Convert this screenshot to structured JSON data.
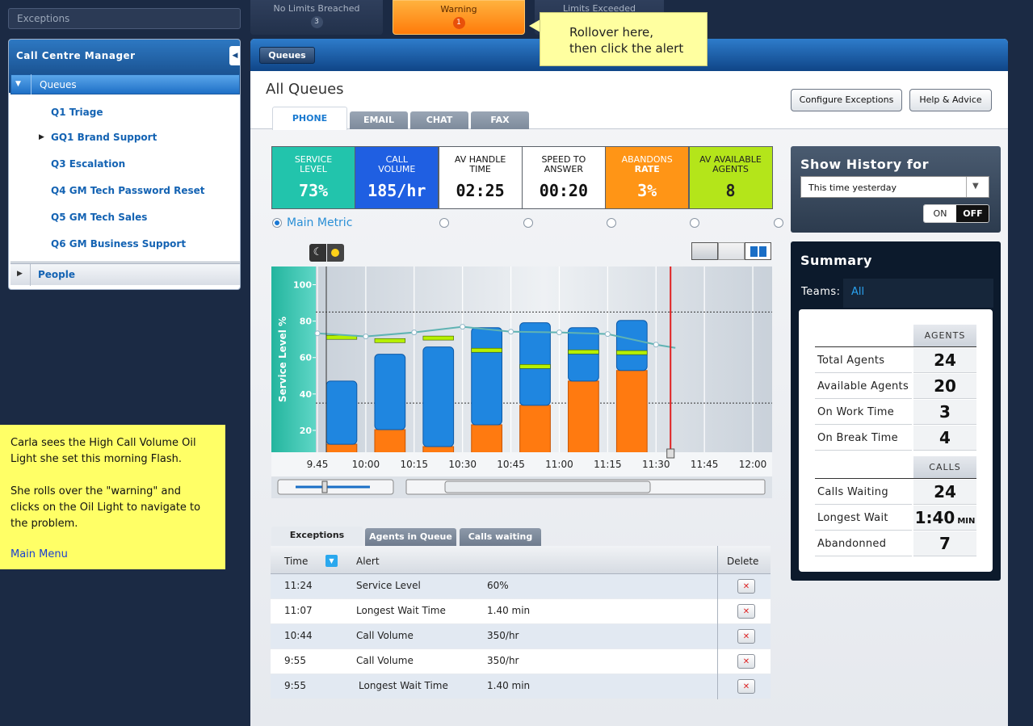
{
  "exceptions_bar": {
    "label": "Exceptions",
    "tabs": [
      {
        "label": "No Limits Breached",
        "count": "3"
      },
      {
        "label": "Warning",
        "count": "1"
      },
      {
        "label": "Limits Exceeded"
      }
    ]
  },
  "callout": {
    "lines": [
      "Rollover here,",
      "then click the alert"
    ]
  },
  "sidebar": {
    "title": "Call Centre Manager",
    "queues": "Queues",
    "items": [
      "Q1 Triage",
      "GQ1 Brand Support",
      "Q3 Escalation",
      "Q4 GM Tech Password Reset",
      "Q5 GM Tech Sales",
      "Q6 GM Business Support"
    ],
    "people": "People"
  },
  "note": {
    "paragraphs": [
      "Carla sees the High Call Volume Oil Light she set this morning Flash.",
      "She rolls over the \"warning\" and clicks on the Oil Light to navigate to the problem."
    ],
    "link": "Main Menu"
  },
  "main": {
    "tab": "Queues",
    "heading": "All Queues",
    "buttons": [
      "Configure Exceptions",
      "Help & Advice"
    ],
    "channels": [
      "PHONE",
      "EMAIL",
      "CHAT",
      "FAX"
    ],
    "main_metric": "Main Metric"
  },
  "metrics": [
    {
      "label": [
        "SERVICE",
        "LEVEL"
      ],
      "value": "73%",
      "background": "#22c4ac",
      "text": "#ffffff"
    },
    {
      "label": [
        "CALL",
        "VOLUME"
      ],
      "value": "185/hr",
      "background": "#1f5fe2",
      "text": "#ffffff"
    },
    {
      "label": [
        "AV HANDLE",
        "TIME"
      ],
      "value": "02:25",
      "background": "#ffffff",
      "text": "#111111"
    },
    {
      "label": [
        "SPEED TO",
        "ANSWER"
      ],
      "value": "00:20",
      "background": "#ffffff",
      "text": "#111111"
    },
    {
      "label": [
        "ABANDONS",
        "RATE"
      ],
      "value": "3%",
      "background": "#ff9516",
      "text": "#ffffff"
    },
    {
      "label": [
        "AV AVAILABLE",
        "AGENTS"
      ],
      "value": "8",
      "background": "#b4e51a",
      "text": "#222222"
    }
  ],
  "chart_data": {
    "type": "bar",
    "y_label": "Service Level %",
    "xlim": [
      584.5,
      726
    ],
    "xticks": [
      {
        "value": 585,
        "label": "9.45"
      },
      {
        "value": 600,
        "label": "10:00"
      },
      {
        "value": 615,
        "label": "10:15"
      },
      {
        "value": 630,
        "label": "10:30"
      },
      {
        "value": 645,
        "label": "10:45"
      },
      {
        "value": 660,
        "label": "11:00"
      },
      {
        "value": 675,
        "label": "11:15"
      },
      {
        "value": 690,
        "label": "11:30"
      },
      {
        "value": 705,
        "label": "11:45"
      },
      {
        "value": 720,
        "label": "12:00"
      }
    ],
    "ylim": [
      8,
      110
    ],
    "yticks": [
      20,
      40,
      60,
      80,
      100
    ],
    "x": [
      592.5,
      607.5,
      622.5,
      637.5,
      652.5,
      667.5,
      682.5
    ],
    "series": [
      {
        "color": "#ff7a10",
        "values": [
          12.4,
          20.4,
          11.1,
          23.1,
          33.8,
          47.1,
          52.9
        ]
      },
      {
        "color": "#1f86e0",
        "values": [
          34.7,
          41.4,
          54.7,
          53.3,
          45.3,
          29.3,
          27.5
        ]
      }
    ],
    "targets": {
      "color": "#b6f000",
      "values": [
        71.1,
        69.3,
        70.7,
        64,
        55.1,
        63.1,
        62.7
      ]
    },
    "trend": {
      "color": "#5fb3b3",
      "x": [
        585,
        600,
        615,
        630,
        645,
        660,
        675,
        690,
        696
      ],
      "values": [
        73.3,
        71.6,
        73.8,
        76.9,
        74.2,
        73.8,
        72.9,
        67.1,
        65.3
      ]
    },
    "thresholds": [
      85,
      35
    ],
    "now": 694.5,
    "grid": true
  },
  "table": {
    "tabs": [
      "Exceptions",
      "Agents in Queue",
      "Calls waiting"
    ],
    "headers": [
      "Time",
      "Alert",
      "Delete"
    ],
    "rows": [
      [
        "11:24",
        "Service Level",
        "60%"
      ],
      [
        "11:07",
        "Longest Wait Time",
        "1.40 min"
      ],
      [
        "10:44",
        "Call Volume",
        "350/hr"
      ],
      [
        "9:55",
        "Call Volume",
        "350/hr"
      ],
      [
        "9:55",
        "Longest Wait Time",
        "1.40 min"
      ]
    ]
  },
  "history": {
    "title": "Show History for",
    "select": "This time yesterday",
    "toggle": [
      "ON",
      "OFF"
    ]
  },
  "summary": {
    "title": "Summary",
    "teams_label": "Teams:",
    "teams": "All",
    "agents_header": "AGENTS",
    "agents": [
      [
        "Total Agents",
        "24"
      ],
      [
        "Available Agents",
        "20"
      ],
      [
        "On Work Time",
        "3"
      ],
      [
        "On Break Time",
        "4"
      ]
    ],
    "calls_header": "CALLS",
    "calls": [
      [
        "Calls Waiting",
        "24"
      ],
      [
        "Longest Wait",
        "1:40",
        "MIN"
      ],
      [
        "Abandonned",
        "7"
      ]
    ]
  }
}
